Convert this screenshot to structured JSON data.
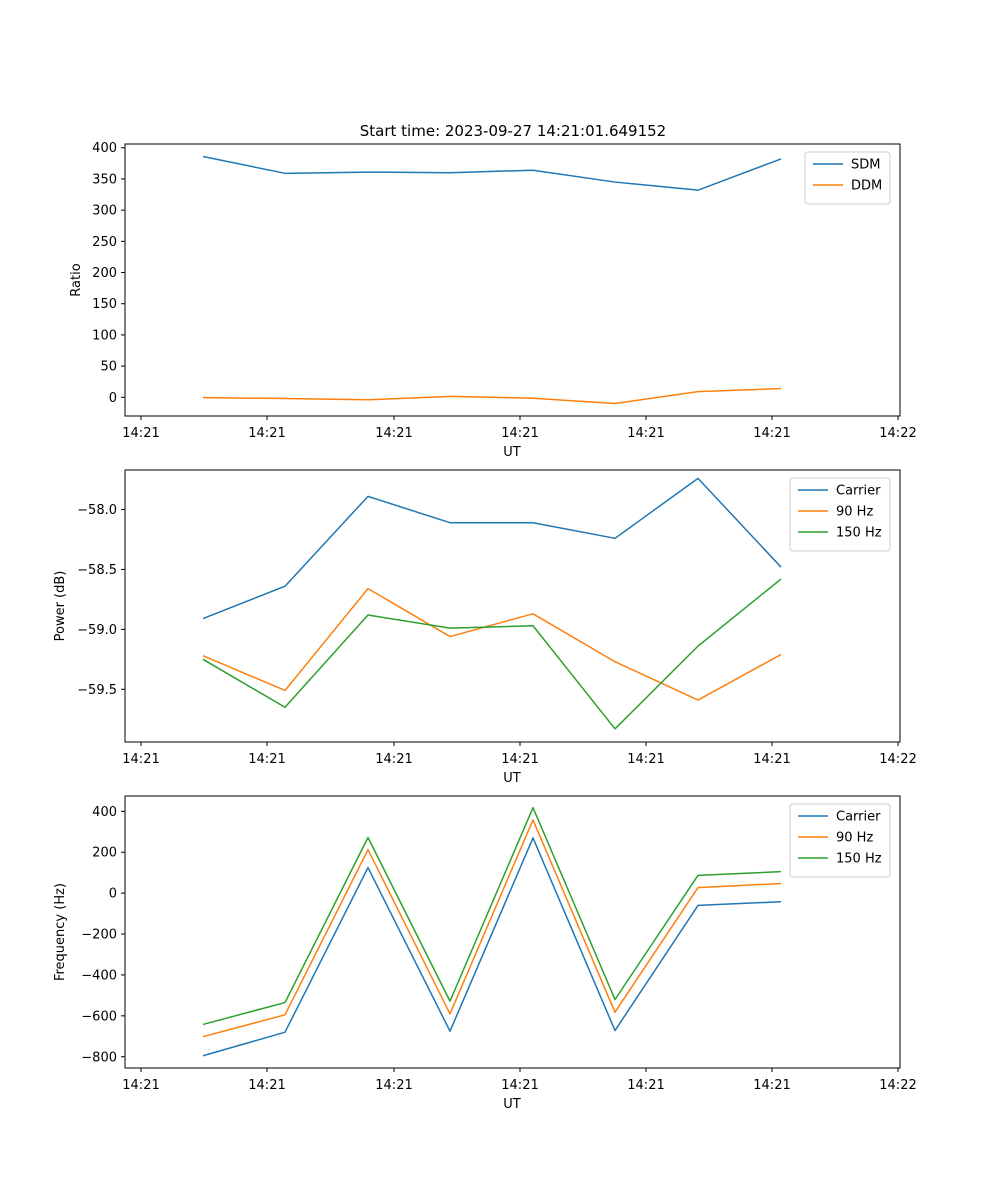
{
  "figure_title": "Start time: 2023-09-27 14:21:01.649152",
  "colors": {
    "blue": "#1f77b4",
    "orange": "#ff7f0e",
    "green": "#2ca02c"
  },
  "chart_data": [
    {
      "type": "line",
      "xlabel": "UT",
      "ylabel": "Ratio",
      "x_tick_labels": [
        "14:21",
        "14:21",
        "14:21",
        "14:21",
        "14:21",
        "14:21",
        "14:21",
        "14:22"
      ],
      "y_ticks": [
        0,
        50,
        100,
        150,
        200,
        250,
        300,
        350,
        400
      ],
      "y_tick_labels": [
        "0",
        "50",
        "100",
        "150",
        "200",
        "250",
        "300",
        "350",
        "400"
      ],
      "ylim": [
        -30,
        406
      ],
      "legend_position": "top-right",
      "series": [
        {
          "name": "SDM",
          "color": "#1f77b4",
          "values": [
            386,
            359,
            361,
            360,
            364,
            345,
            332,
            382
          ]
        },
        {
          "name": "DDM",
          "color": "#ff7f0e",
          "values": [
            -0.5,
            -2,
            -4,
            1.5,
            -1.5,
            -10,
            9,
            14
          ]
        }
      ]
    },
    {
      "type": "line",
      "xlabel": "UT",
      "ylabel": "Power (dB)",
      "x_tick_labels": [
        "14:21",
        "14:21",
        "14:21",
        "14:21",
        "14:21",
        "14:21",
        "14:21",
        "14:22"
      ],
      "y_ticks": [
        -58.0,
        -58.5,
        -59.0,
        -59.5
      ],
      "y_tick_labels": [
        "−58.0",
        "−58.5",
        "−59.0",
        "−59.5"
      ],
      "ylim": [
        -59.94,
        -57.67
      ],
      "legend_position": "top-right",
      "series": [
        {
          "name": "Carrier",
          "color": "#1f77b4",
          "values": [
            -58.91,
            -58.64,
            -57.89,
            -58.11,
            -58.11,
            -58.24,
            -57.74,
            -58.48
          ]
        },
        {
          "name": "90 Hz",
          "color": "#ff7f0e",
          "values": [
            -59.22,
            -59.51,
            -58.66,
            -59.06,
            -58.87,
            -59.27,
            -59.59,
            -59.21
          ]
        },
        {
          "name": "150 Hz",
          "color": "#2ca02c",
          "values": [
            -59.25,
            -59.65,
            -58.88,
            -58.99,
            -58.97,
            -59.83,
            -59.14,
            -58.58
          ]
        }
      ]
    },
    {
      "type": "line",
      "xlabel": "UT",
      "ylabel": "Frequency (Hz)",
      "x_tick_labels": [
        "14:21",
        "14:21",
        "14:21",
        "14:21",
        "14:21",
        "14:21",
        "14:21",
        "14:22"
      ],
      "y_ticks": [
        400,
        200,
        0,
        -200,
        -400,
        -600,
        -800
      ],
      "y_tick_labels": [
        "400",
        "200",
        "0",
        "−200",
        "−400",
        "−600",
        "−800"
      ],
      "ylim": [
        -855,
        475
      ],
      "legend_position": "top-right",
      "series": [
        {
          "name": "Carrier",
          "color": "#1f77b4",
          "values": [
            -795,
            -680,
            125,
            -675,
            270,
            -672,
            -60,
            -42
          ]
        },
        {
          "name": "90 Hz",
          "color": "#ff7f0e",
          "values": [
            -702,
            -595,
            213,
            -590,
            358,
            -582,
            27,
            47
          ]
        },
        {
          "name": "150 Hz",
          "color": "#2ca02c",
          "values": [
            -642,
            -535,
            272,
            -528,
            418,
            -520,
            87,
            105
          ]
        }
      ]
    }
  ]
}
